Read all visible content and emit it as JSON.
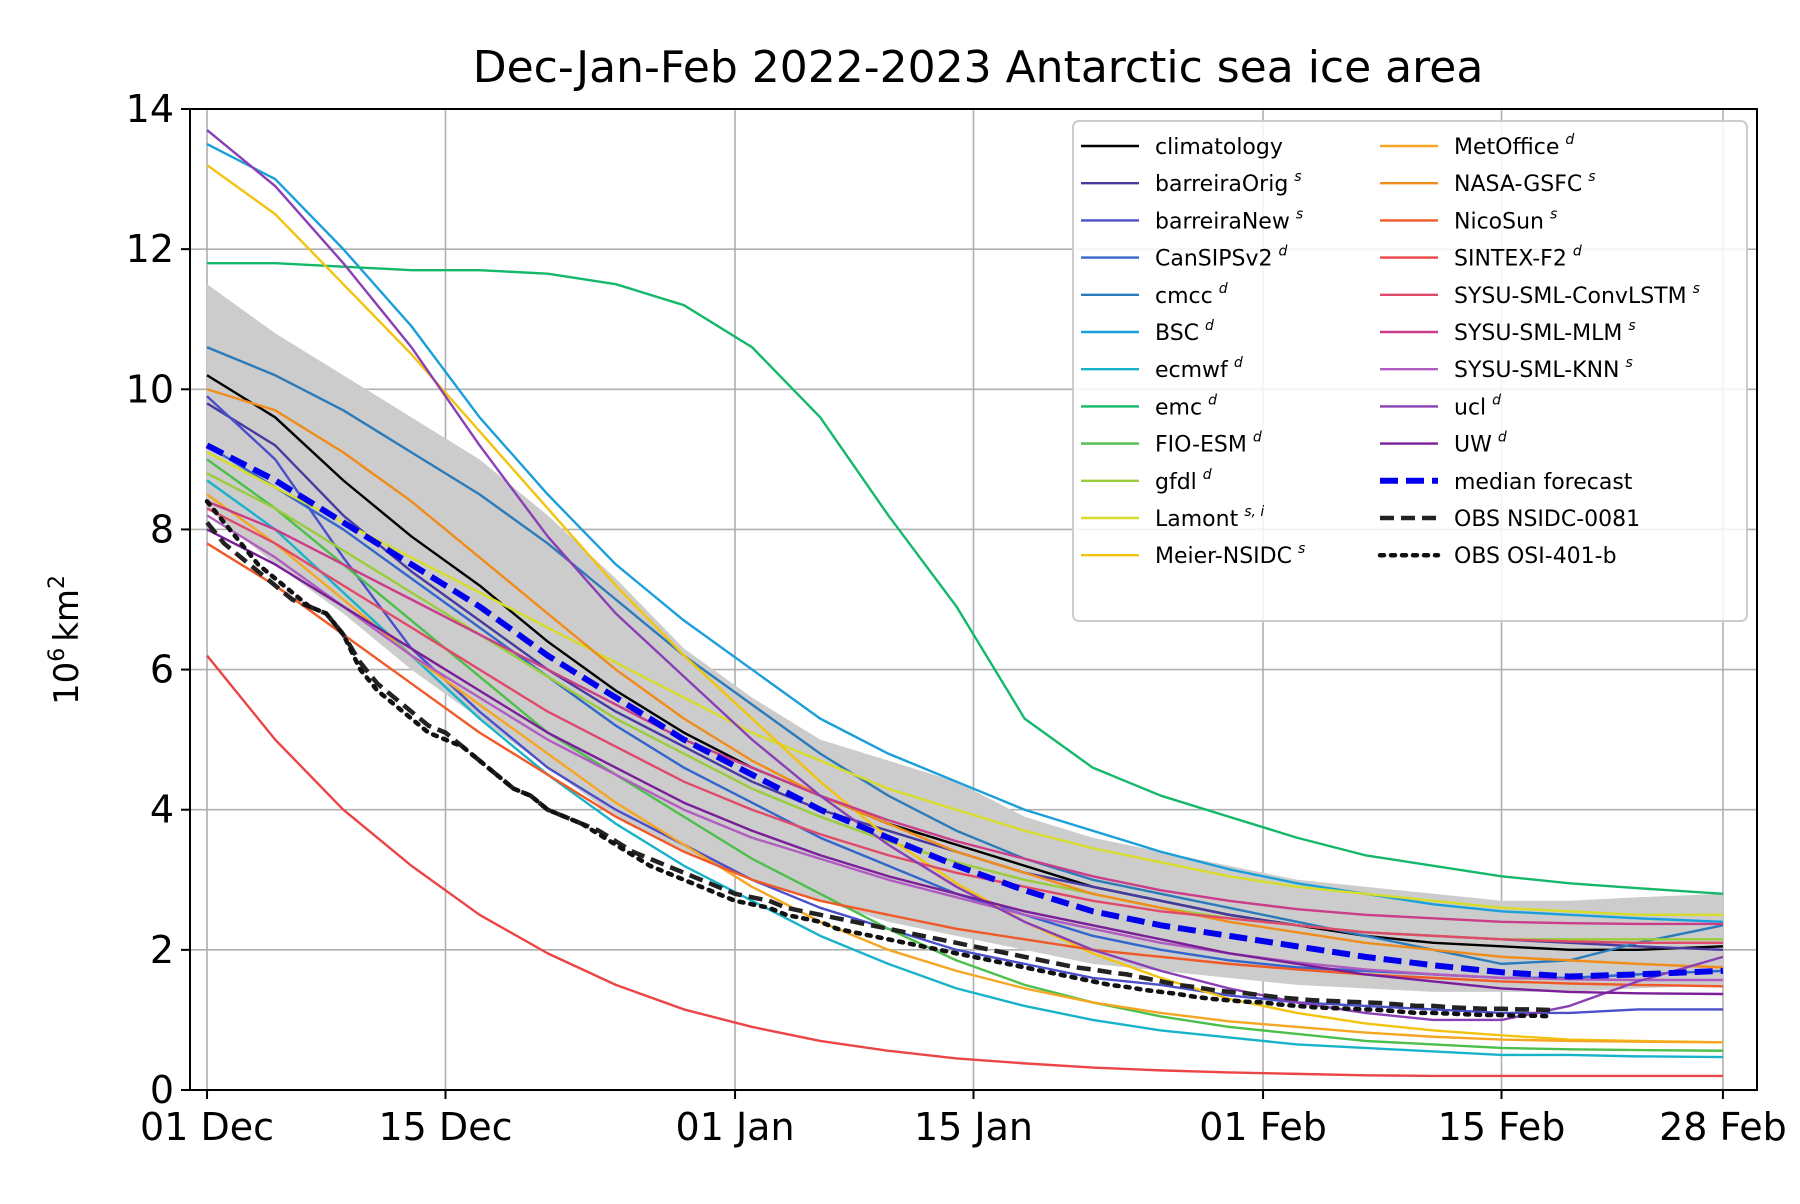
{
  "chart_data": {
    "type": "line",
    "title": "Dec-Jan-Feb 2022-2023 Antarctic sea ice area",
    "ylabel": "10⁶ km²",
    "ylabel_base": "10",
    "ylabel_exp": "6",
    "ylabel_unit": "km",
    "ylabel_unit_exp": "2",
    "xlim": [
      -1,
      91
    ],
    "ylim": [
      0,
      14
    ],
    "xticks": [
      {
        "day": 0,
        "label": "01 Dec"
      },
      {
        "day": 14,
        "label": "15 Dec"
      },
      {
        "day": 31,
        "label": "01 Jan"
      },
      {
        "day": 45,
        "label": "15 Jan"
      },
      {
        "day": 62,
        "label": "01 Feb"
      },
      {
        "day": 76,
        "label": "15 Feb"
      },
      {
        "day": 89,
        "label": "28 Feb"
      }
    ],
    "yticks": [
      0,
      2,
      4,
      6,
      8,
      10,
      12,
      14
    ],
    "grid": true,
    "legend_position": "upper right",
    "band": {
      "x": [
        0,
        4,
        8,
        12,
        16,
        20,
        24,
        28,
        32,
        36,
        40,
        44,
        48,
        52,
        56,
        60,
        64,
        68,
        72,
        76,
        80,
        84,
        89
      ],
      "upper": [
        11.5,
        10.8,
        10.2,
        9.6,
        9.0,
        8.2,
        7.3,
        6.3,
        5.6,
        5.0,
        4.7,
        4.4,
        3.9,
        3.6,
        3.4,
        3.2,
        3.0,
        2.9,
        2.8,
        2.7,
        2.7,
        2.75,
        2.8
      ],
      "lower": [
        8.3,
        7.5,
        6.8,
        6.0,
        5.3,
        4.6,
        3.9,
        3.4,
        3.0,
        2.7,
        2.4,
        2.2,
        2.0,
        1.8,
        1.7,
        1.6,
        1.5,
        1.45,
        1.4,
        1.4,
        1.4,
        1.45,
        1.5
      ],
      "color": "#cccccc"
    },
    "x_days": [
      0,
      4,
      8,
      12,
      16,
      20,
      24,
      28,
      32,
      36,
      40,
      44,
      48,
      52,
      56,
      60,
      64,
      68,
      72,
      76,
      80,
      84,
      89
    ],
    "series": [
      {
        "name": "climatology",
        "sup": "",
        "color": "#000000",
        "dash": "solid",
        "legend_col": 0,
        "values": [
          10.2,
          9.6,
          8.7,
          7.9,
          7.2,
          6.4,
          5.7,
          5.1,
          4.6,
          4.2,
          3.8,
          3.5,
          3.2,
          2.9,
          2.7,
          2.5,
          2.35,
          2.2,
          2.1,
          2.05,
          2.0,
          2.0,
          2.05
        ]
      },
      {
        "name": "barreiraOrig",
        "sup": "s",
        "color": "#473ba0",
        "dash": "solid",
        "legend_col": 0,
        "values": [
          9.8,
          9.2,
          8.2,
          7.4,
          6.7,
          6.0,
          5.4,
          4.9,
          4.4,
          4.0,
          3.7,
          3.4,
          3.1,
          2.9,
          2.7,
          2.5,
          2.35,
          2.25,
          2.2,
          2.15,
          2.1,
          2.05,
          2.0
        ]
      },
      {
        "name": "barreiraNew",
        "sup": "s",
        "color": "#4b4fc8",
        "dash": "solid",
        "legend_col": 0,
        "values": [
          9.9,
          9.0,
          7.6,
          6.3,
          5.4,
          4.6,
          4.0,
          3.5,
          3.0,
          2.6,
          2.3,
          2.0,
          1.8,
          1.6,
          1.5,
          1.35,
          1.25,
          1.2,
          1.15,
          1.1,
          1.1,
          1.15,
          1.15
        ]
      },
      {
        "name": "CanSIPSv2",
        "sup": "d",
        "color": "#3366cc",
        "dash": "solid",
        "legend_col": 0,
        "values": [
          9.2,
          8.6,
          8.0,
          7.3,
          6.6,
          5.9,
          5.2,
          4.6,
          4.1,
          3.6,
          3.2,
          2.8,
          2.5,
          2.2,
          2.0,
          1.85,
          1.75,
          1.7,
          1.65,
          1.6,
          1.6,
          1.65,
          1.7
        ]
      },
      {
        "name": "cmcc",
        "sup": "d",
        "color": "#2b7bba",
        "dash": "solid",
        "legend_col": 0,
        "values": [
          10.6,
          10.2,
          9.7,
          9.1,
          8.5,
          7.8,
          7.0,
          6.2,
          5.5,
          4.8,
          4.2,
          3.7,
          3.3,
          3.0,
          2.8,
          2.6,
          2.4,
          2.2,
          2.0,
          1.8,
          1.85,
          2.1,
          2.35
        ]
      },
      {
        "name": "BSC",
        "sup": "d",
        "color": "#1a9fdb",
        "dash": "solid",
        "legend_col": 0,
        "values": [
          13.5,
          13.0,
          12.0,
          10.9,
          9.6,
          8.5,
          7.5,
          6.7,
          6.0,
          5.3,
          4.8,
          4.4,
          4.0,
          3.7,
          3.4,
          3.15,
          2.95,
          2.8,
          2.65,
          2.55,
          2.5,
          2.45,
          2.4
        ]
      },
      {
        "name": "ecmwf",
        "sup": "d",
        "color": "#19b3c9",
        "dash": "solid",
        "legend_col": 0,
        "values": [
          8.7,
          8.0,
          7.1,
          6.2,
          5.3,
          4.5,
          3.8,
          3.2,
          2.7,
          2.2,
          1.8,
          1.45,
          1.2,
          1.0,
          0.85,
          0.75,
          0.65,
          0.6,
          0.55,
          0.5,
          0.5,
          0.48,
          0.47
        ]
      },
      {
        "name": "emc",
        "sup": "d",
        "color": "#14b86b",
        "dash": "solid",
        "legend_col": 0,
        "values": [
          11.8,
          11.8,
          11.75,
          11.7,
          11.7,
          11.65,
          11.5,
          11.2,
          10.6,
          9.6,
          8.2,
          6.9,
          5.3,
          4.6,
          4.2,
          3.9,
          3.6,
          3.35,
          3.2,
          3.05,
          2.95,
          2.88,
          2.8
        ]
      },
      {
        "name": "FIO-ESM",
        "sup": "d",
        "color": "#4cbf4c",
        "dash": "solid",
        "legend_col": 0,
        "values": [
          9.0,
          8.3,
          7.5,
          6.7,
          5.9,
          5.1,
          4.5,
          3.9,
          3.3,
          2.8,
          2.3,
          1.85,
          1.5,
          1.25,
          1.05,
          0.9,
          0.8,
          0.7,
          0.65,
          0.6,
          0.58,
          0.57,
          0.56
        ]
      },
      {
        "name": "gfdl",
        "sup": "d",
        "color": "#9acc3d",
        "dash": "solid",
        "legend_col": 0,
        "values": [
          8.8,
          8.3,
          7.7,
          7.1,
          6.5,
          5.9,
          5.3,
          4.8,
          4.3,
          3.9,
          3.55,
          3.25,
          3.0,
          2.8,
          2.6,
          2.45,
          2.35,
          2.25,
          2.2,
          2.15,
          2.15,
          2.15,
          2.15
        ]
      },
      {
        "name": "Lamont",
        "sup": "s, i",
        "color": "#d6dc2a",
        "dash": "solid",
        "legend_col": 0,
        "values": [
          9.1,
          8.6,
          8.1,
          7.6,
          7.1,
          6.6,
          6.1,
          5.6,
          5.1,
          4.7,
          4.3,
          4.0,
          3.7,
          3.45,
          3.25,
          3.05,
          2.9,
          2.8,
          2.7,
          2.6,
          2.55,
          2.5,
          2.5
        ]
      },
      {
        "name": "Meier-NSIDC",
        "sup": "s",
        "color": "#f2c40f",
        "dash": "solid",
        "legend_col": 0,
        "values": [
          13.2,
          12.5,
          11.5,
          10.5,
          9.4,
          8.3,
          7.2,
          6.2,
          5.3,
          4.4,
          3.6,
          2.95,
          2.4,
          1.95,
          1.6,
          1.3,
          1.1,
          0.95,
          0.85,
          0.78,
          0.72,
          0.7,
          0.68
        ]
      },
      {
        "name": "MetOffice",
        "sup": "d",
        "color": "#f5a623",
        "dash": "solid",
        "legend_col": 1,
        "values": [
          8.5,
          7.8,
          7.0,
          6.2,
          5.5,
          4.8,
          4.1,
          3.5,
          2.9,
          2.4,
          2.0,
          1.7,
          1.45,
          1.25,
          1.1,
          0.98,
          0.9,
          0.82,
          0.76,
          0.72,
          0.7,
          0.69,
          0.68
        ]
      },
      {
        "name": "NASA-GSFC",
        "sup": "s",
        "color": "#f08c1a",
        "dash": "solid",
        "legend_col": 1,
        "values": [
          10.0,
          9.7,
          9.1,
          8.4,
          7.6,
          6.8,
          6.0,
          5.3,
          4.7,
          4.2,
          3.8,
          3.4,
          3.1,
          2.8,
          2.6,
          2.4,
          2.25,
          2.1,
          2.0,
          1.9,
          1.85,
          1.8,
          1.75
        ]
      },
      {
        "name": "NicoSun",
        "sup": "s",
        "color": "#ef5a28",
        "dash": "solid",
        "legend_col": 1,
        "values": [
          7.8,
          7.2,
          6.5,
          5.8,
          5.1,
          4.5,
          3.9,
          3.4,
          3.0,
          2.7,
          2.5,
          2.3,
          2.15,
          2.0,
          1.9,
          1.8,
          1.72,
          1.65,
          1.6,
          1.55,
          1.52,
          1.5,
          1.48
        ]
      },
      {
        "name": "SINTEX-F2",
        "sup": "d",
        "color": "#ec4545",
        "dash": "solid",
        "legend_col": 1,
        "values": [
          6.2,
          5.0,
          4.0,
          3.2,
          2.5,
          1.95,
          1.5,
          1.15,
          0.9,
          0.7,
          0.56,
          0.45,
          0.38,
          0.32,
          0.28,
          0.25,
          0.23,
          0.21,
          0.2,
          0.2,
          0.2,
          0.2,
          0.2
        ]
      },
      {
        "name": "SYSU-SML-ConvLSTM",
        "sup": "s",
        "color": "#e04a6a",
        "dash": "solid",
        "legend_col": 1,
        "values": [
          8.3,
          7.8,
          7.2,
          6.6,
          6.0,
          5.4,
          4.9,
          4.4,
          4.0,
          3.65,
          3.35,
          3.1,
          2.9,
          2.7,
          2.55,
          2.45,
          2.35,
          2.25,
          2.2,
          2.15,
          2.12,
          2.1,
          2.1
        ]
      },
      {
        "name": "SYSU-SML-MLM",
        "sup": "s",
        "color": "#c93d89",
        "dash": "solid",
        "legend_col": 1,
        "values": [
          8.4,
          8.0,
          7.5,
          7.0,
          6.5,
          6.0,
          5.5,
          5.0,
          4.6,
          4.2,
          3.85,
          3.55,
          3.3,
          3.05,
          2.85,
          2.7,
          2.58,
          2.5,
          2.45,
          2.4,
          2.38,
          2.37,
          2.37
        ]
      },
      {
        "name": "SYSU-SML-KNN",
        "sup": "s",
        "color": "#b05cc0",
        "dash": "solid",
        "legend_col": 1,
        "values": [
          8.2,
          7.6,
          6.9,
          6.2,
          5.6,
          5.0,
          4.5,
          4.0,
          3.6,
          3.3,
          3.0,
          2.75,
          2.5,
          2.3,
          2.1,
          1.95,
          1.82,
          1.72,
          1.65,
          1.6,
          1.58,
          1.57,
          1.57
        ]
      },
      {
        "name": "ucl",
        "sup": "d",
        "color": "#8a3fb5",
        "dash": "solid",
        "legend_col": 1,
        "values": [
          13.7,
          12.9,
          11.8,
          10.6,
          9.2,
          7.9,
          6.8,
          5.9,
          5.0,
          4.2,
          3.5,
          2.9,
          2.4,
          2.0,
          1.7,
          1.45,
          1.25,
          1.1,
          1.0,
          1.0,
          1.2,
          1.55,
          1.9
        ]
      },
      {
        "name": "UW",
        "sup": "d",
        "color": "#7a1e9a",
        "dash": "solid",
        "legend_col": 1,
        "values": [
          8.0,
          7.5,
          6.9,
          6.3,
          5.7,
          5.1,
          4.6,
          4.1,
          3.7,
          3.35,
          3.05,
          2.8,
          2.55,
          2.35,
          2.15,
          1.95,
          1.8,
          1.65,
          1.55,
          1.45,
          1.4,
          1.38,
          1.37
        ]
      },
      {
        "name": "median forecast",
        "sup": "",
        "color": "#0000ee",
        "dash": "dash-thick",
        "legend_col": 1,
        "values": [
          9.2,
          8.7,
          8.1,
          7.5,
          6.9,
          6.2,
          5.6,
          5.0,
          4.5,
          4.0,
          3.6,
          3.2,
          2.85,
          2.55,
          2.35,
          2.2,
          2.05,
          1.9,
          1.78,
          1.68,
          1.62,
          1.65,
          1.7
        ]
      }
    ],
    "observations": [
      {
        "name": "OBS NSIDC-0081",
        "sup": "",
        "color": "#222222",
        "dash": "dash",
        "legend_col": 1,
        "x": [
          0,
          1,
          2,
          3,
          4,
          5,
          6,
          7,
          8,
          9,
          10,
          11,
          12,
          13,
          14,
          15,
          16,
          17,
          18,
          19,
          20,
          21,
          22,
          23,
          24,
          25,
          26,
          27,
          28,
          29,
          30,
          31,
          32,
          33,
          34,
          35,
          36,
          37,
          38,
          39,
          40,
          41,
          42,
          43,
          44,
          45,
          46,
          47,
          48,
          49,
          50,
          51,
          52,
          53,
          54,
          55,
          56,
          57,
          58,
          59,
          60,
          61,
          62,
          63,
          64,
          65,
          66,
          67,
          68,
          69,
          70,
          71,
          72,
          73,
          74,
          75,
          76,
          77,
          78,
          79
        ],
        "values": [
          8.1,
          7.8,
          7.6,
          7.4,
          7.2,
          7.0,
          6.9,
          6.8,
          6.5,
          6.1,
          5.8,
          5.6,
          5.4,
          5.2,
          5.1,
          4.9,
          4.7,
          4.5,
          4.3,
          4.2,
          4.0,
          3.9,
          3.8,
          3.7,
          3.55,
          3.4,
          3.3,
          3.2,
          3.1,
          3.0,
          2.9,
          2.8,
          2.75,
          2.7,
          2.6,
          2.55,
          2.5,
          2.45,
          2.4,
          2.35,
          2.3,
          2.25,
          2.2,
          2.15,
          2.1,
          2.05,
          2.0,
          1.95,
          1.9,
          1.85,
          1.8,
          1.75,
          1.72,
          1.68,
          1.65,
          1.6,
          1.55,
          1.5,
          1.47,
          1.43,
          1.4,
          1.38,
          1.35,
          1.32,
          1.3,
          1.28,
          1.27,
          1.26,
          1.25,
          1.24,
          1.22,
          1.2,
          1.2,
          1.18,
          1.17,
          1.16,
          1.16,
          1.15,
          1.15,
          1.14
        ]
      },
      {
        "name": "OBS OSI-401-b",
        "sup": "",
        "color": "#111111",
        "dash": "dot",
        "legend_col": 1,
        "x": [
          0,
          1,
          2,
          3,
          4,
          5,
          6,
          7,
          8,
          9,
          10,
          11,
          12,
          13,
          14,
          15,
          16,
          17,
          18,
          19,
          20,
          21,
          22,
          23,
          24,
          25,
          26,
          27,
          28,
          29,
          30,
          31,
          32,
          33,
          34,
          35,
          36,
          37,
          38,
          39,
          40,
          41,
          42,
          43,
          44,
          45,
          46,
          47,
          48,
          49,
          50,
          51,
          52,
          53,
          54,
          55,
          56,
          57,
          58,
          59,
          60,
          61,
          62,
          63,
          64,
          65,
          66,
          67,
          68,
          69,
          70,
          71,
          72,
          73,
          74,
          75,
          76,
          77,
          78,
          79
        ],
        "values": [
          8.4,
          8.1,
          7.8,
          7.5,
          7.3,
          7.1,
          6.9,
          6.8,
          6.5,
          6.0,
          5.7,
          5.5,
          5.3,
          5.1,
          5.0,
          4.9,
          4.7,
          4.5,
          4.3,
          4.2,
          4.0,
          3.9,
          3.8,
          3.65,
          3.5,
          3.35,
          3.2,
          3.1,
          3.0,
          2.9,
          2.8,
          2.7,
          2.65,
          2.6,
          2.5,
          2.45,
          2.4,
          2.3,
          2.25,
          2.2,
          2.15,
          2.1,
          2.05,
          2.0,
          1.95,
          1.9,
          1.85,
          1.8,
          1.75,
          1.7,
          1.65,
          1.6,
          1.55,
          1.5,
          1.47,
          1.43,
          1.4,
          1.37,
          1.33,
          1.3,
          1.28,
          1.26,
          1.25,
          1.22,
          1.2,
          1.18,
          1.17,
          1.16,
          1.15,
          1.14,
          1.12,
          1.1,
          1.1,
          1.09,
          1.08,
          1.07,
          1.07,
          1.06,
          1.06,
          1.05
        ]
      }
    ]
  }
}
